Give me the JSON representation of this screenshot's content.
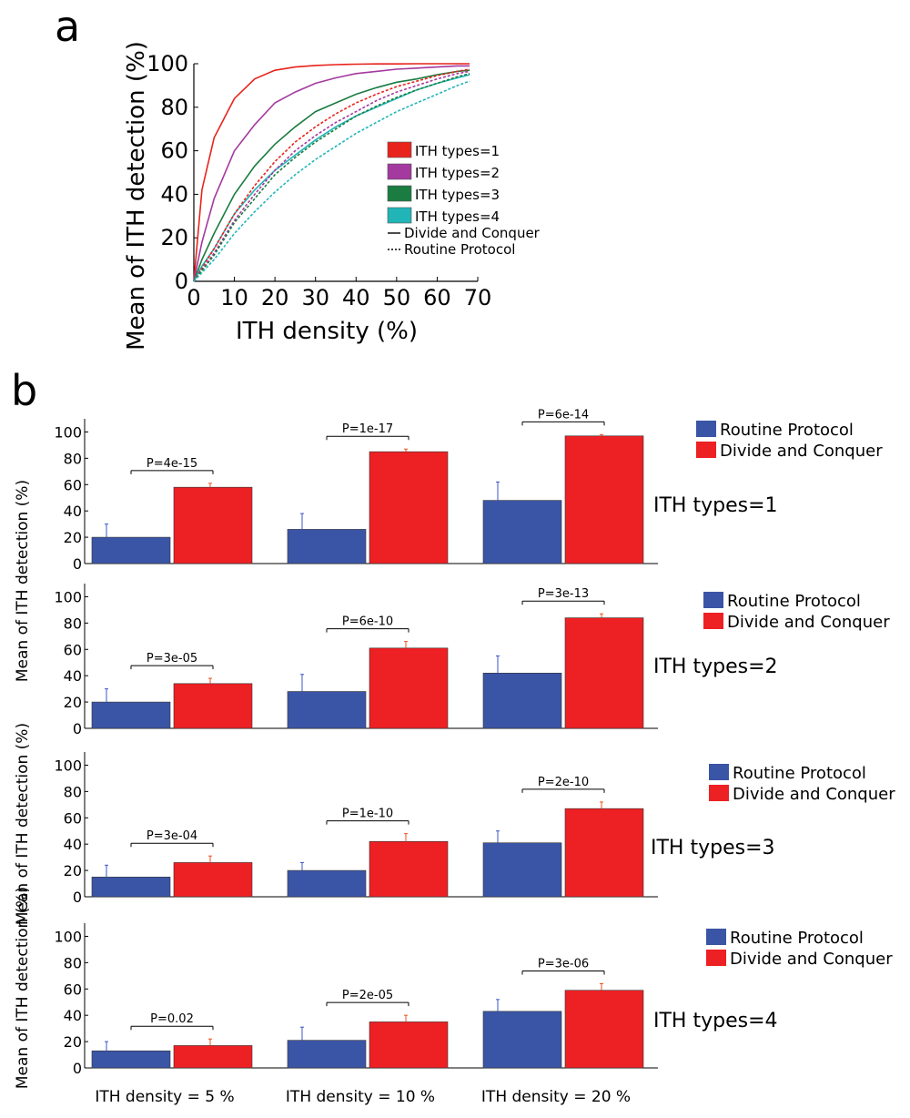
{
  "panel_labels": {
    "a": "a",
    "b": "b"
  },
  "colors": {
    "types1": "#e8231c",
    "types2": "#a4399f",
    "types3": "#1b7c41",
    "types4": "#22b5b8",
    "bar_routine": "#3b55a6",
    "bar_divide": "#ed2024",
    "err_routine": "#3b55c8",
    "err_divide": "#f0501e"
  },
  "chart_data": [
    {
      "type": "line",
      "panel": "a",
      "xlabel": "ITH density (%)",
      "ylabel": "Mean of ITH detection (%)",
      "xlim": [
        0,
        70
      ],
      "ylim": [
        0,
        100
      ],
      "xticks": [
        0,
        10,
        20,
        30,
        40,
        50,
        60,
        70
      ],
      "yticks": [
        0,
        20,
        40,
        60,
        80,
        100
      ],
      "grid": false,
      "legend_position": "right",
      "legend": [
        {
          "label": "ITH types=1",
          "color_key": "types1",
          "style": "box"
        },
        {
          "label": "ITH types=2",
          "color_key": "types2",
          "style": "box"
        },
        {
          "label": "ITH types=3",
          "color_key": "types3",
          "style": "box"
        },
        {
          "label": "ITH types=4",
          "color_key": "types4",
          "style": "box"
        },
        {
          "label": "Divide and Conquer",
          "style": "solid"
        },
        {
          "label": "Routine Protocol",
          "style": "dashed"
        }
      ],
      "x": [
        0,
        2,
        5,
        10,
        15,
        20,
        25,
        30,
        35,
        40,
        45,
        50,
        55,
        60,
        65,
        68
      ],
      "series": [
        {
          "name": "ITH types=1",
          "group": "Divide and Conquer",
          "color_key": "types1",
          "dash": false,
          "y": [
            0,
            42,
            66,
            84,
            93,
            97,
            98.5,
            99.2,
            99.6,
            99.8,
            99.9,
            99.9,
            100,
            100,
            100,
            100
          ]
        },
        {
          "name": "ITH types=2",
          "group": "Divide and Conquer",
          "color_key": "types2",
          "dash": false,
          "y": [
            0,
            18,
            38,
            60,
            72,
            82,
            87,
            91,
            93.5,
            95.5,
            96.5,
            97.5,
            98,
            98.5,
            99,
            99
          ]
        },
        {
          "name": "ITH types=3",
          "group": "Divide and Conquer",
          "color_key": "types3",
          "dash": false,
          "y": [
            0,
            10,
            22,
            40,
            53,
            63,
            71,
            78,
            82,
            86,
            89,
            91.5,
            93,
            95,
            96.5,
            97
          ]
        },
        {
          "name": "ITH types=4",
          "group": "Divide and Conquer",
          "color_key": "types4",
          "dash": false,
          "y": [
            0,
            7,
            15,
            31,
            42,
            51,
            58,
            65,
            71,
            76,
            80,
            84,
            88,
            91,
            93.5,
            95
          ]
        },
        {
          "name": "ITH types=1",
          "group": "Routine Protocol",
          "color_key": "types1",
          "dash": true,
          "y": [
            0,
            6,
            15,
            31,
            44,
            55,
            64,
            71,
            77,
            82,
            86,
            89.5,
            92,
            94.5,
            96.5,
            97.5
          ]
        },
        {
          "name": "ITH types=2",
          "group": "Routine Protocol",
          "color_key": "types2",
          "dash": true,
          "y": [
            0,
            5,
            13,
            28,
            40,
            51,
            60,
            67,
            73,
            78,
            83,
            87,
            90,
            93,
            95.5,
            96.5
          ]
        },
        {
          "name": "ITH types=3",
          "group": "Routine Protocol",
          "color_key": "types3",
          "dash": true,
          "y": [
            0,
            5,
            12,
            27,
            38,
            49,
            57,
            64,
            70,
            76,
            80.5,
            84.5,
            88,
            91,
            94,
            95.5
          ]
        },
        {
          "name": "ITH types=4",
          "group": "Routine Protocol",
          "color_key": "types4",
          "dash": true,
          "y": [
            0,
            4,
            10,
            22,
            32,
            41,
            49,
            56,
            62,
            68,
            73,
            78,
            82,
            86,
            90,
            92
          ]
        }
      ]
    },
    {
      "type": "bar",
      "panel": "b",
      "ith_types_label": "ITH types=1",
      "ylabel": "",
      "ylim": [
        0,
        110
      ],
      "yticks": [
        0,
        20,
        40,
        60,
        80,
        100
      ],
      "legend": [
        "Routine Protocol",
        "Divide and Conquer"
      ],
      "categories": [
        "ITH density = 5 %",
        "ITH density = 10 %",
        "ITH density = 20 %"
      ],
      "series": [
        {
          "name": "Routine Protocol",
          "values": [
            20,
            26,
            48
          ],
          "errors": [
            10,
            12,
            14
          ]
        },
        {
          "name": "Divide and Conquer",
          "values": [
            58,
            85,
            97
          ],
          "errors": [
            3,
            2,
            1
          ]
        }
      ],
      "pvalues": [
        "P=4e-15",
        "P=1e-17",
        "P=6e-14"
      ]
    },
    {
      "type": "bar",
      "panel": "b",
      "ith_types_label": "ITH types=2",
      "ylabel": "Mean of ITH detection (%)",
      "ylim": [
        0,
        110
      ],
      "yticks": [
        0,
        20,
        40,
        60,
        80,
        100
      ],
      "legend": [
        "Routine Protocol",
        "Divide and Conquer"
      ],
      "categories": [
        "ITH density = 5 %",
        "ITH density = 10 %",
        "ITH density = 20 %"
      ],
      "series": [
        {
          "name": "Routine Protocol",
          "values": [
            20,
            28,
            42
          ],
          "errors": [
            10,
            13,
            13
          ]
        },
        {
          "name": "Divide and Conquer",
          "values": [
            34,
            61,
            84
          ],
          "errors": [
            4,
            5,
            3
          ]
        }
      ],
      "pvalues": [
        "P=3e-05",
        "P=6e-10",
        "P=3e-13"
      ]
    },
    {
      "type": "bar",
      "panel": "b",
      "ith_types_label": "ITH types=3",
      "ylabel": "Mean of ITH detection (%)",
      "ylim": [
        0,
        110
      ],
      "yticks": [
        0,
        20,
        40,
        60,
        80,
        100
      ],
      "legend": [
        "Routine Protocol",
        "Divide and Conquer"
      ],
      "categories": [
        "ITH density = 5 %",
        "ITH density = 10 %",
        "ITH density = 20 %"
      ],
      "series": [
        {
          "name": "Routine Protocol",
          "values": [
            15,
            20,
            41
          ],
          "errors": [
            9,
            6,
            9
          ]
        },
        {
          "name": "Divide and Conquer",
          "values": [
            26,
            42,
            67
          ],
          "errors": [
            5,
            6,
            5
          ]
        }
      ],
      "pvalues": [
        "P=3e-04",
        "P=1e-10",
        "P=2e-10"
      ]
    },
    {
      "type": "bar",
      "panel": "b",
      "ith_types_label": "ITH types=4",
      "ylabel": "Mean of ITH detection (%)",
      "ylim": [
        0,
        110
      ],
      "yticks": [
        0,
        20,
        40,
        60,
        80,
        100
      ],
      "legend": [
        "Routine Protocol",
        "Divide and Conquer"
      ],
      "categories": [
        "ITH density = 5 %",
        "ITH density = 10 %",
        "ITH density = 20 %"
      ],
      "series": [
        {
          "name": "Routine Protocol",
          "values": [
            13,
            21,
            43
          ],
          "errors": [
            7,
            10,
            9
          ]
        },
        {
          "name": "Divide and Conquer",
          "values": [
            17,
            35,
            59
          ],
          "errors": [
            5,
            5,
            5
          ]
        }
      ],
      "pvalues": [
        "P=0.02",
        "P=2e-05",
        "P=3e-06"
      ]
    }
  ]
}
